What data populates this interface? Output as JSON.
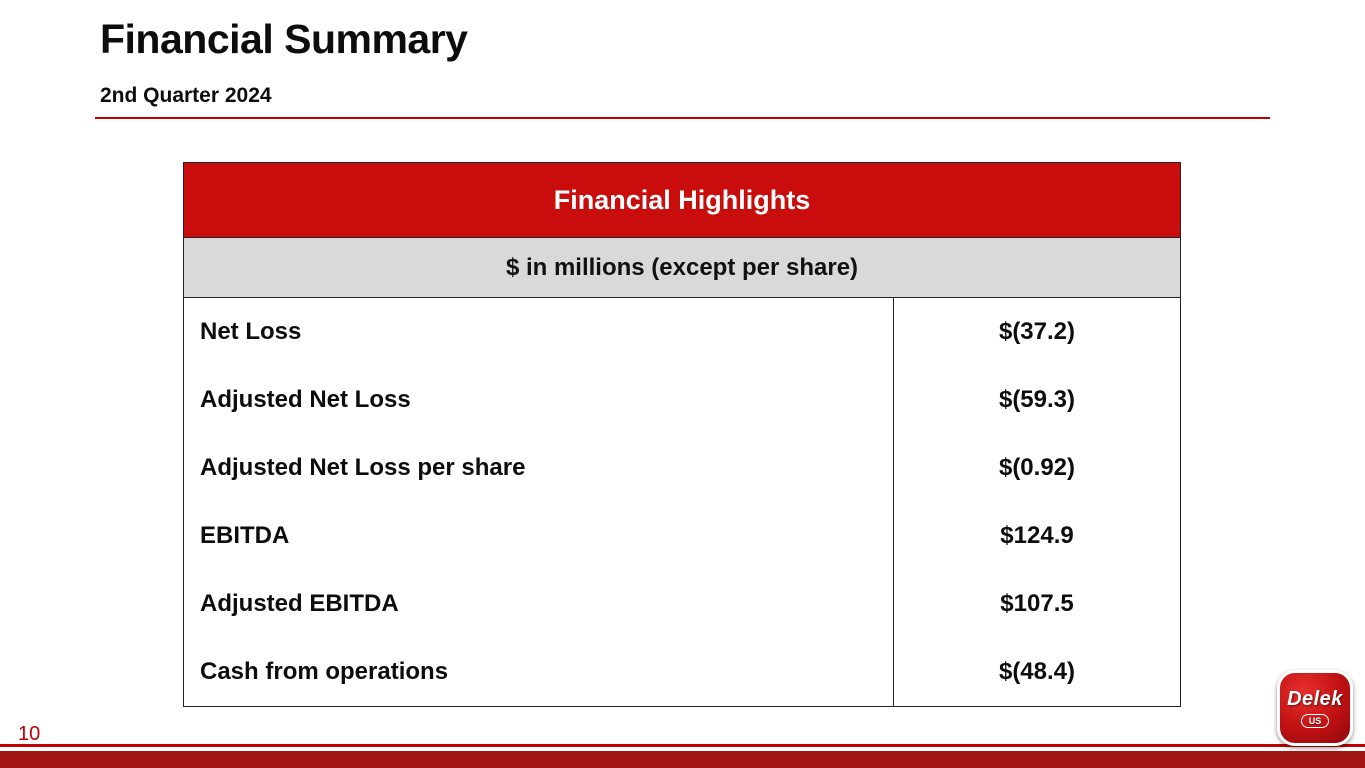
{
  "slide": {
    "title": "Financial Summary",
    "subtitle": "2nd Quarter 2024",
    "page_number": "10"
  },
  "table": {
    "header": "Financial Highlights",
    "subheader": "$ in millions (except per share)",
    "rows": [
      {
        "label": "Net Loss",
        "value": "$(37.2)"
      },
      {
        "label": "Adjusted Net Loss",
        "value": "$(59.3)"
      },
      {
        "label": "Adjusted Net Loss per share",
        "value": "$(0.92)"
      },
      {
        "label": "EBITDA",
        "value": "$124.9"
      },
      {
        "label": "Adjusted EBITDA",
        "value": "$107.5"
      },
      {
        "label": "Cash from operations",
        "value": "$(48.4)"
      }
    ]
  },
  "logo": {
    "brand": "Delek",
    "sub": "US"
  },
  "colors": {
    "accent_red": "#c00000",
    "table_header_red": "#c90d0d",
    "subheader_gray": "#d9d9d9",
    "footer_bar_red": "#a11515"
  }
}
